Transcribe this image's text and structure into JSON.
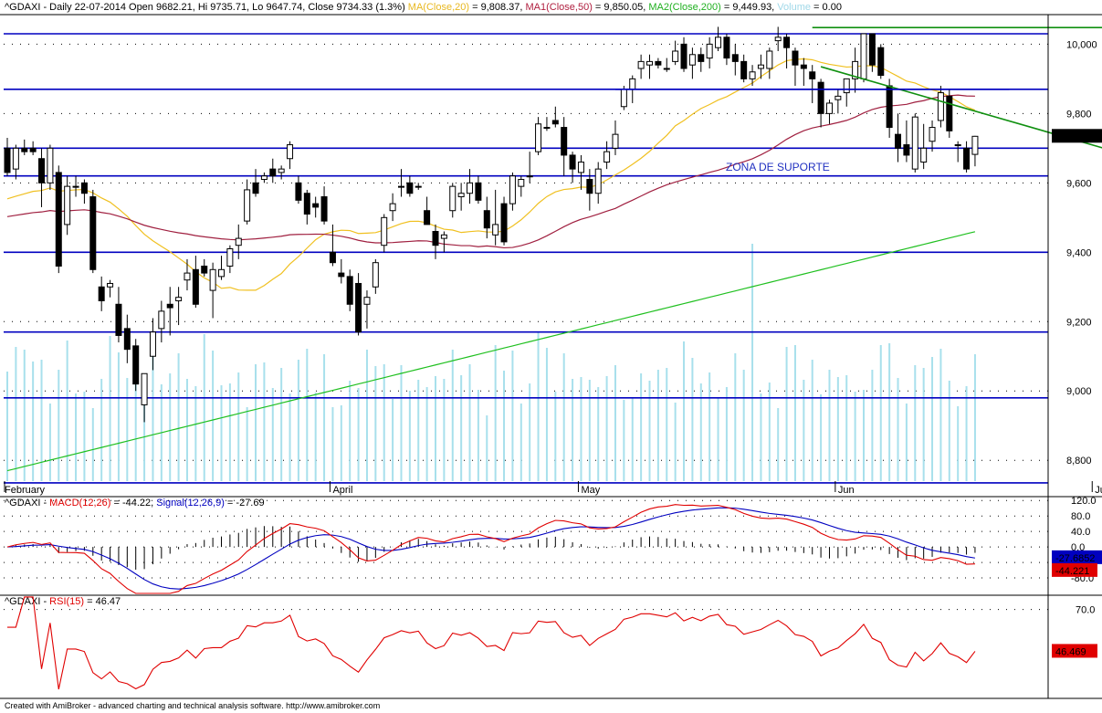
{
  "header": {
    "symbol": "^GDAXI",
    "desc": " - Daily 22-07-2014 Open 9682.21, Hi 9735.71, Lo 9647.74, Close 9734.33 (1.3%) ",
    "ma20": "MA(Close,20)",
    "ma20_val": " = 9,808.37, ",
    "ma50": "MA1(Close,50)",
    "ma50_val": " = 9,850.05, ",
    "ma200": "MA2(Close,200)",
    "ma200_val": " = 9,449.93, ",
    "volume": "Volume",
    "volume_val": " = 0.00"
  },
  "colors": {
    "bull": "#ffffff",
    "bear": "#000000",
    "ma20": "#f0c020",
    "ma50": "#a02040",
    "ma200": "#20c020",
    "volume": "#a8e0ec",
    "hline": "#0000c0",
    "trend": "#109010",
    "macd": "#e00000",
    "signal": "#0000c0",
    "rsi": "#e00000"
  },
  "annotation": "ZONA DE SUPORTE",
  "footer": "Created with AmiBroker - advanced charting and technical analysis software. http://www.amibroker.com",
  "panels": {
    "macd_title": "^GDAXI - ",
    "macd_name": "MACD(12,26)",
    "macd_val": " = -44.22, ",
    "signal_name": "Signal(12,26,9)",
    "signal_val": " = -27.69",
    "rsi_title": "^GDAXI - ",
    "rsi_name": "RSI(15)",
    "rsi_val": " = 46.47"
  },
  "chart_data": {
    "type": "candlestick",
    "price_yaxis": [
      "10,000",
      "9,800",
      "9,600",
      "9,400",
      "9,200",
      "9,000",
      "8,800"
    ],
    "price_ylim": [
      8740,
      10080
    ],
    "x_month_labels": [
      {
        "label": "February",
        "index": 0
      },
      {
        "label": "April",
        "index": 38
      },
      {
        "label": "May",
        "index": 67
      },
      {
        "label": "Jun",
        "index": 97
      },
      {
        "label": "Jul",
        "index": 127
      }
    ],
    "last_close_label": "9,734.33",
    "candles": [
      [
        9700,
        9730,
        9620,
        9630
      ],
      [
        9640,
        9710,
        9610,
        9700
      ],
      [
        9700,
        9725,
        9680,
        9690
      ],
      [
        9700,
        9720,
        9680,
        9690
      ],
      [
        9670,
        9700,
        9530,
        9600
      ],
      [
        9600,
        9710,
        9580,
        9700
      ],
      [
        9630,
        9650,
        9340,
        9360
      ],
      [
        9480,
        9620,
        9450,
        9590
      ],
      [
        9590,
        9620,
        9560,
        9590
      ],
      [
        9600,
        9610,
        9540,
        9570
      ],
      [
        9560,
        9580,
        9340,
        9350
      ],
      [
        9300,
        9330,
        9230,
        9260
      ],
      [
        9300,
        9320,
        9270,
        9310
      ],
      [
        9250,
        9300,
        9140,
        9160
      ],
      [
        9180,
        9220,
        9080,
        9120
      ],
      [
        9130,
        9150,
        9000,
        9020
      ],
      [
        8960,
        9050,
        8910,
        9050
      ],
      [
        9100,
        9210,
        9060,
        9170
      ],
      [
        9180,
        9260,
        9140,
        9230
      ],
      [
        9250,
        9300,
        9160,
        9240
      ],
      [
        9260,
        9300,
        9190,
        9270
      ],
      [
        9320,
        9380,
        9290,
        9340
      ],
      [
        9350,
        9390,
        9240,
        9250
      ],
      [
        9360,
        9380,
        9330,
        9340
      ],
      [
        9290,
        9370,
        9210,
        9350
      ],
      [
        9330,
        9390,
        9320,
        9350
      ],
      [
        9360,
        9420,
        9340,
        9410
      ],
      [
        9420,
        9480,
        9380,
        9440
      ],
      [
        9490,
        9610,
        9480,
        9580
      ],
      [
        9600,
        9640,
        9560,
        9570
      ],
      [
        9610,
        9630,
        9600,
        9620
      ],
      [
        9640,
        9670,
        9600,
        9620
      ],
      [
        9630,
        9650,
        9610,
        9640
      ],
      [
        9670,
        9720,
        9640,
        9710
      ],
      [
        9600,
        9620,
        9540,
        9550
      ],
      [
        9570,
        9580,
        9480,
        9510
      ],
      [
        9540,
        9560,
        9500,
        9530
      ],
      [
        9560,
        9590,
        9480,
        9490
      ],
      [
        9400,
        9480,
        9360,
        9370
      ],
      [
        9340,
        9380,
        9310,
        9330
      ],
      [
        9330,
        9350,
        9230,
        9250
      ],
      [
        9310,
        9340,
        9160,
        9170
      ],
      [
        9250,
        9290,
        9180,
        9270
      ],
      [
        9300,
        9380,
        9280,
        9370
      ],
      [
        9420,
        9510,
        9400,
        9500
      ],
      [
        9520,
        9570,
        9490,
        9540
      ],
      [
        9590,
        9640,
        9560,
        9590
      ],
      [
        9600,
        9620,
        9560,
        9570
      ],
      [
        9590,
        9600,
        9580,
        9590
      ],
      [
        9520,
        9560,
        9480,
        9480
      ],
      [
        9460,
        9480,
        9380,
        9420
      ],
      [
        9440,
        9460,
        9400,
        9450
      ],
      [
        9520,
        9600,
        9500,
        9590
      ],
      [
        9560,
        9600,
        9520,
        9570
      ],
      [
        9570,
        9640,
        9540,
        9600
      ],
      [
        9600,
        9620,
        9540,
        9550
      ],
      [
        9520,
        9560,
        9440,
        9470
      ],
      [
        9450,
        9580,
        9420,
        9480
      ],
      [
        9540,
        9560,
        9420,
        9430
      ],
      [
        9540,
        9630,
        9520,
        9620
      ],
      [
        9590,
        9620,
        9560,
        9610
      ],
      [
        9620,
        9690,
        9600,
        9620
      ],
      [
        9690,
        9790,
        9680,
        9770
      ],
      [
        9760,
        9790,
        9750,
        9760
      ],
      [
        9780,
        9820,
        9760,
        9770
      ],
      [
        9760,
        9790,
        9620,
        9680
      ],
      [
        9680,
        9690,
        9600,
        9640
      ],
      [
        9630,
        9680,
        9580,
        9660
      ],
      [
        9610,
        9640,
        9520,
        9570
      ],
      [
        9570,
        9660,
        9540,
        9640
      ],
      [
        9660,
        9720,
        9640,
        9690
      ],
      [
        9700,
        9780,
        9680,
        9740
      ],
      [
        9820,
        9880,
        9810,
        9870
      ],
      [
        9870,
        9910,
        9830,
        9900
      ],
      [
        9930,
        9970,
        9900,
        9950
      ],
      [
        9940,
        9970,
        9900,
        9950
      ],
      [
        9950,
        9960,
        9930,
        9940
      ],
      [
        9930,
        9960,
        9920,
        9930
      ],
      [
        9950,
        10010,
        9940,
        9980
      ],
      [
        10000,
        10020,
        9920,
        9930
      ],
      [
        9940,
        9990,
        9900,
        9970
      ],
      [
        9970,
        9990,
        9920,
        9950
      ],
      [
        9960,
        10020,
        9930,
        10000
      ],
      [
        9990,
        10050,
        9980,
        10020
      ],
      [
        10020,
        10030,
        9940,
        9960
      ],
      [
        9970,
        10000,
        9910,
        9950
      ],
      [
        9950,
        9970,
        9890,
        9900
      ],
      [
        9900,
        9940,
        9880,
        9920
      ],
      [
        9930,
        9970,
        9900,
        9940
      ],
      [
        9930,
        9990,
        9900,
        9980
      ],
      [
        10010,
        10050,
        9980,
        10020
      ],
      [
        10020,
        10030,
        9930,
        9990
      ],
      [
        9980,
        9990,
        9880,
        9940
      ],
      [
        9940,
        9960,
        9880,
        9930
      ],
      [
        9920,
        9940,
        9830,
        9900
      ],
      [
        9890,
        9900,
        9760,
        9800
      ],
      [
        9800,
        9840,
        9770,
        9830
      ],
      [
        9840,
        9870,
        9800,
        9850
      ],
      [
        9860,
        9900,
        9820,
        9900
      ],
      [
        9900,
        9990,
        9860,
        9950
      ],
      [
        9900,
        10030,
        9890,
        10030
      ],
      [
        10030,
        10030,
        9920,
        9940
      ],
      [
        9990,
        10000,
        9900,
        9910
      ],
      [
        9880,
        9900,
        9730,
        9760
      ],
      [
        9740,
        9800,
        9660,
        9700
      ],
      [
        9710,
        9780,
        9660,
        9680
      ],
      [
        9640,
        9800,
        9630,
        9790
      ],
      [
        9660,
        9770,
        9640,
        9700
      ],
      [
        9720,
        9780,
        9690,
        9760
      ],
      [
        9780,
        9880,
        9760,
        9860
      ],
      [
        9850,
        9870,
        9730,
        9750
      ],
      [
        9710,
        9720,
        9660,
        9710
      ],
      [
        9700,
        9720,
        9630,
        9640
      ],
      [
        9682.21,
        9735.71,
        9647.74,
        9734.33
      ]
    ],
    "volume_note": "volume histogram shown relative (not scaled in data units)",
    "horizontal_levels": [
      10030,
      9870,
      9700,
      9620,
      9400,
      9170,
      8980,
      8735
    ],
    "trend_resistance": {
      "from": [
        94,
        10048
      ],
      "to": [
        147,
        10048
      ]
    },
    "trend_support": {
      "from": [
        95,
        9935
      ],
      "to": [
        147,
        9565
      ]
    },
    "support_box_level": 9870,
    "macd": {
      "yaxis": [
        "120.0",
        "80.0",
        "40.0",
        "0.0",
        "-40.0",
        "-80.0"
      ],
      "ylim": [
        -120,
        130
      ],
      "last_macd": "-44.221",
      "last_signal": "-27.6852"
    },
    "rsi": {
      "yaxis": [
        "70.0"
      ],
      "ylim": [
        20,
        78
      ],
      "last": "46.469"
    }
  }
}
